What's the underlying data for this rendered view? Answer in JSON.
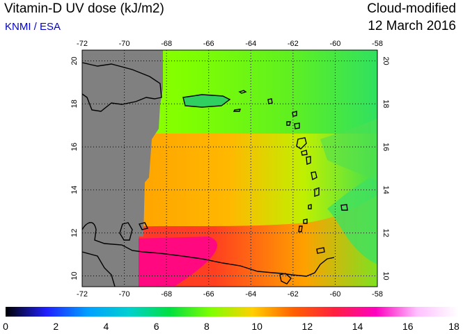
{
  "header": {
    "title": "Vitamin-D UV dose (kJ/m2)",
    "source": "KNMI / ESA",
    "mode": "Cloud-modified",
    "date": "12 March 2016"
  },
  "map": {
    "lon_ticks": [
      "-72",
      "-70",
      "-68",
      "-66",
      "-64",
      "-62",
      "-60",
      "-58"
    ],
    "lat_ticks": [
      "10",
      "12",
      "14",
      "16",
      "18",
      "20"
    ],
    "lon_range": [
      -72,
      -58
    ],
    "lat_range": [
      9.5,
      20.5
    ],
    "no_data_color": "#808080"
  },
  "colorbar": {
    "labels": [
      "0",
      "2",
      "4",
      "6",
      "8",
      "10",
      "12",
      "14",
      "16",
      "18"
    ],
    "stops": [
      "#000000",
      "#2020ff",
      "#00a0ff",
      "#00d0d0",
      "#00e040",
      "#80ff00",
      "#ffd000",
      "#ff6000",
      "#ff2040",
      "#ff00c0",
      "#ffc0ff",
      "#ffffff"
    ]
  }
}
